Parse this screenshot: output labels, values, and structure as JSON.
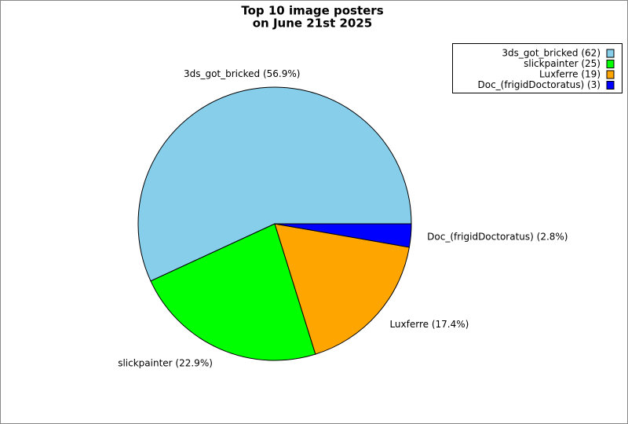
{
  "chart_data": {
    "type": "pie",
    "title": [
      "Top 10 image posters",
      "on June 21st 2025"
    ],
    "categories": [
      "3ds_got_bricked",
      "slickpainter",
      "Luxferre",
      "Doc_(frigidDoctoratus)"
    ],
    "values": [
      62,
      25,
      19,
      3
    ],
    "colors": [
      "#87ceeb",
      "#00ff00",
      "#ffa500",
      "#0000ff"
    ],
    "slice_labels": [
      "3ds_got_bricked (56.9%)",
      "slickpainter (22.9%)",
      "Luxferre (17.4%)",
      "Doc_(frigidDoctoratus) (2.8%)"
    ],
    "legend_labels": [
      "3ds_got_bricked (62)",
      "slickpainter (25)",
      "Luxferre (19)",
      "Doc_(frigidDoctoratus) (3)"
    ],
    "legend": "upper right"
  }
}
